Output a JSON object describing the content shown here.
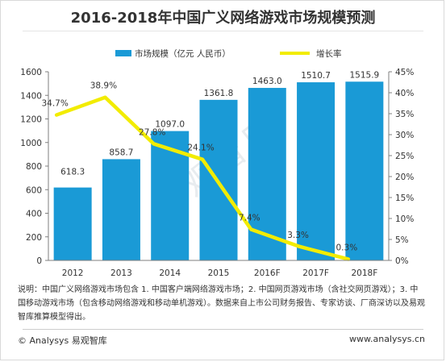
{
  "title": "2016-2018年中国广义网络游戏市场规模预测",
  "watermark": "易观智库",
  "note": "说明：中国广义网络游戏市场包含 1. 中国客户端网络游戏市场；2. 中国网页游戏市场（含社交网页游戏）；3. 中国移动游戏市场（包含移动网络游戏和移动单机游戏）。数据来自上市公司财务报告、专家访谈、厂商深访以及易观智库推算模型得出。",
  "source": "© Analysys 易观智库",
  "site": "www.analysys.cn",
  "colors": {
    "bar": "#1a9ad6",
    "line": "#f2ec00"
  },
  "chart_data": {
    "type": "bar",
    "categories": [
      "2012",
      "2013",
      "2014",
      "2015",
      "2016F",
      "2017F",
      "2018F"
    ],
    "series": [
      {
        "name": "市场规模（亿元 人民币）",
        "type": "bar",
        "axis": "left",
        "values": [
          618.3,
          858.7,
          1097.0,
          1361.8,
          1463.0,
          1510.7,
          1515.9
        ],
        "labels": [
          "618.3",
          "858.7",
          "1097.0",
          "1361.8",
          "1463.0",
          "1510.7",
          "1515.9"
        ]
      },
      {
        "name": "增长率",
        "type": "line",
        "axis": "right",
        "values": [
          34.7,
          38.9,
          27.8,
          24.1,
          7.4,
          3.3,
          0.3
        ],
        "labels": [
          "34.7%",
          "38.9%",
          "27.8%",
          "24.1%",
          "7.4%",
          "3.3%",
          "0.3%"
        ]
      }
    ],
    "y_left": {
      "ylim": [
        0,
        1600
      ],
      "ticks": [
        "0",
        "200",
        "400",
        "600",
        "800",
        "1000",
        "1200",
        "1400",
        "1600"
      ]
    },
    "y_right": {
      "ylim": [
        0,
        45
      ],
      "ticks": [
        "0%",
        "5%",
        "10%",
        "15%",
        "20%",
        "25%",
        "30%",
        "35%",
        "40%",
        "45%"
      ]
    },
    "legend_position": "top",
    "grid": false
  }
}
